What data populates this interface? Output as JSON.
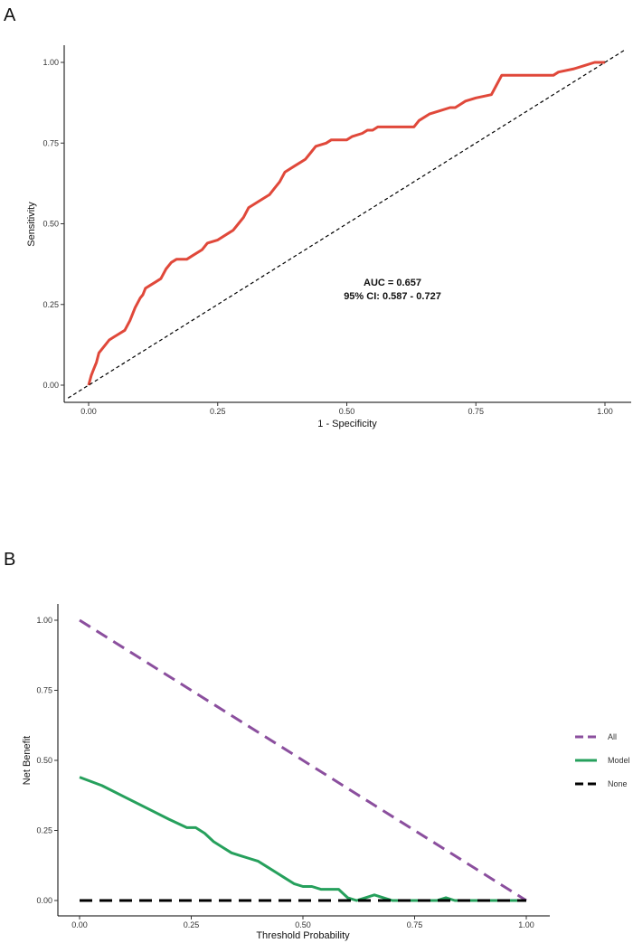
{
  "chart_data": [
    {
      "panel": "A",
      "type": "line",
      "title": "",
      "xlabel": "1 - Specificity",
      "ylabel": "Sensitivity",
      "xlim": [
        0,
        1
      ],
      "ylim": [
        0,
        1
      ],
      "xticks": [
        "0.00",
        "0.25",
        "0.50",
        "0.75",
        "1.00"
      ],
      "yticks": [
        "0.00",
        "0.25",
        "0.50",
        "0.75",
        "1.00"
      ],
      "grid": false,
      "annotations": [
        "AUC = 0.657",
        "95% CI: 0.587 - 0.727"
      ],
      "series": [
        {
          "color": "#e0483a",
          "style": "solid",
          "x": [
            0.0,
            0.005,
            0.01,
            0.015,
            0.02,
            0.03,
            0.04,
            0.05,
            0.07,
            0.08,
            0.09,
            0.1,
            0.105,
            0.11,
            0.12,
            0.13,
            0.14,
            0.15,
            0.16,
            0.17,
            0.18,
            0.19,
            0.2,
            0.22,
            0.23,
            0.25,
            0.27,
            0.28,
            0.29,
            0.3,
            0.31,
            0.33,
            0.35,
            0.36,
            0.37,
            0.38,
            0.4,
            0.41,
            0.42,
            0.43,
            0.44,
            0.46,
            0.47,
            0.48,
            0.5,
            0.51,
            0.53,
            0.54,
            0.55,
            0.56,
            0.58,
            0.6,
            0.63,
            0.64,
            0.66,
            0.68,
            0.7,
            0.71,
            0.73,
            0.75,
            0.78,
            0.79,
            0.8,
            0.82,
            0.84,
            0.9,
            0.91,
            0.94,
            0.96,
            0.98,
            1.0
          ],
          "y": [
            0.0,
            0.03,
            0.05,
            0.07,
            0.1,
            0.12,
            0.14,
            0.15,
            0.17,
            0.2,
            0.24,
            0.27,
            0.28,
            0.3,
            0.31,
            0.32,
            0.33,
            0.36,
            0.38,
            0.39,
            0.39,
            0.39,
            0.4,
            0.42,
            0.44,
            0.45,
            0.47,
            0.48,
            0.5,
            0.52,
            0.55,
            0.57,
            0.59,
            0.61,
            0.63,
            0.66,
            0.68,
            0.69,
            0.7,
            0.72,
            0.74,
            0.75,
            0.76,
            0.76,
            0.76,
            0.77,
            0.78,
            0.79,
            0.79,
            0.8,
            0.8,
            0.8,
            0.8,
            0.82,
            0.84,
            0.85,
            0.86,
            0.86,
            0.88,
            0.89,
            0.9,
            0.93,
            0.96,
            0.96,
            0.96,
            0.96,
            0.97,
            0.98,
            0.99,
            1.0,
            1.0
          ]
        },
        {
          "color": "#000000",
          "style": "dashed",
          "x": [
            -0.04,
            1.04
          ],
          "y": [
            -0.04,
            1.04
          ]
        }
      ]
    },
    {
      "panel": "B",
      "type": "line",
      "title": "",
      "xlabel": "Threshold Probability",
      "ylabel": "Net Benefit",
      "xlim": [
        0,
        1
      ],
      "ylim": [
        0,
        1
      ],
      "xticks": [
        "0.00",
        "0.25",
        "0.50",
        "0.75",
        "1.00"
      ],
      "yticks": [
        "0.00",
        "0.25",
        "0.50",
        "0.75",
        "1.00"
      ],
      "grid": false,
      "legend_position": "right",
      "series": [
        {
          "name": "All",
          "color": "#8b4f9e",
          "style": "dashed",
          "x": [
            0.0,
            1.0
          ],
          "y": [
            1.0,
            0.0
          ]
        },
        {
          "name": "Model",
          "color": "#26a05c",
          "style": "solid",
          "x": [
            0.0,
            0.05,
            0.1,
            0.15,
            0.2,
            0.24,
            0.26,
            0.28,
            0.3,
            0.32,
            0.34,
            0.36,
            0.38,
            0.4,
            0.42,
            0.44,
            0.46,
            0.48,
            0.5,
            0.52,
            0.54,
            0.56,
            0.58,
            0.6,
            0.62,
            0.64,
            0.66,
            0.68,
            0.7,
            0.8,
            0.82,
            0.84,
            0.9,
            1.0
          ],
          "y": [
            0.44,
            0.41,
            0.37,
            0.33,
            0.29,
            0.26,
            0.26,
            0.24,
            0.21,
            0.19,
            0.17,
            0.16,
            0.15,
            0.14,
            0.12,
            0.1,
            0.08,
            0.06,
            0.05,
            0.05,
            0.04,
            0.04,
            0.04,
            0.01,
            0.0,
            0.01,
            0.02,
            0.01,
            0.0,
            0.0,
            0.01,
            0.0,
            0.0,
            0.0
          ]
        },
        {
          "name": "None",
          "color": "#000000",
          "style": "dashed",
          "x": [
            0.0,
            1.0
          ],
          "y": [
            0.0,
            0.0
          ]
        }
      ]
    }
  ]
}
